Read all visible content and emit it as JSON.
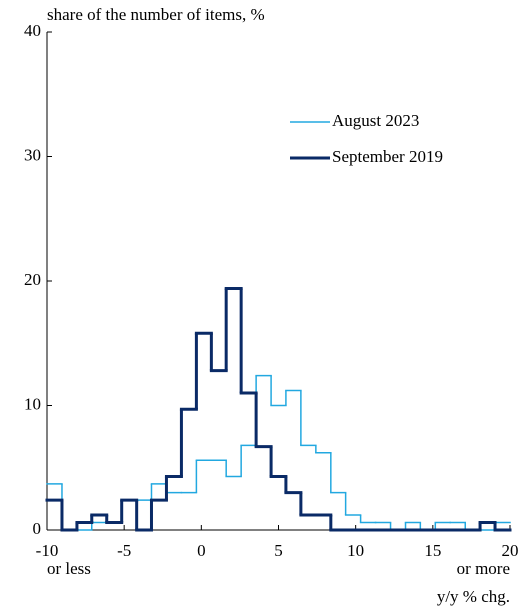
{
  "chart_data": {
    "type": "step-histogram",
    "y_label": "share of the number of items, %",
    "x_label": "y/y % chg.",
    "annotations": [
      {
        "text": "or less",
        "x": -10
      },
      {
        "text": "or more",
        "x": 20
      }
    ],
    "bins": [
      -10,
      -9.03,
      -8.06,
      -7.1,
      -6.13,
      -5.16,
      -4.19,
      -3.23,
      -2.26,
      -1.29,
      -0.32,
      0.65,
      1.61,
      2.58,
      3.55,
      4.52,
      5.48,
      6.45,
      7.42,
      8.39,
      9.35,
      10.32,
      11.29,
      12.26,
      13.23,
      14.19,
      15.16,
      16.13,
      17.1,
      18.06,
      19.03,
      20
    ],
    "series": [
      {
        "name": "August 2023",
        "color": "#22a8e0",
        "width": 1.5,
        "values": [
          3.7,
          0,
          0,
          0.6,
          0.6,
          2.4,
          2.4,
          3.7,
          3.0,
          3.0,
          5.6,
          5.6,
          4.3,
          6.8,
          12.4,
          10.0,
          11.2,
          6.8,
          6.2,
          3.0,
          1.2,
          0.6,
          0.6,
          0,
          0.6,
          0,
          0.6,
          0.6,
          0,
          0,
          0.6
        ]
      },
      {
        "name": "September 2019",
        "color": "#0a2a66",
        "width": 3,
        "values": [
          2.4,
          0,
          0.6,
          1.2,
          0.6,
          2.4,
          0,
          2.4,
          4.3,
          9.7,
          15.8,
          12.8,
          19.4,
          11.0,
          6.7,
          4.3,
          3.0,
          1.2,
          1.2,
          0,
          0,
          0,
          0,
          0,
          0,
          0,
          0,
          0,
          0,
          0.6,
          0
        ]
      }
    ],
    "xlim": [
      -10,
      20
    ],
    "xticks": [
      -10,
      -5,
      0,
      5,
      10,
      15,
      20
    ],
    "ylim": [
      0,
      40
    ],
    "yticks": [
      0,
      10,
      20,
      30,
      40
    ]
  }
}
